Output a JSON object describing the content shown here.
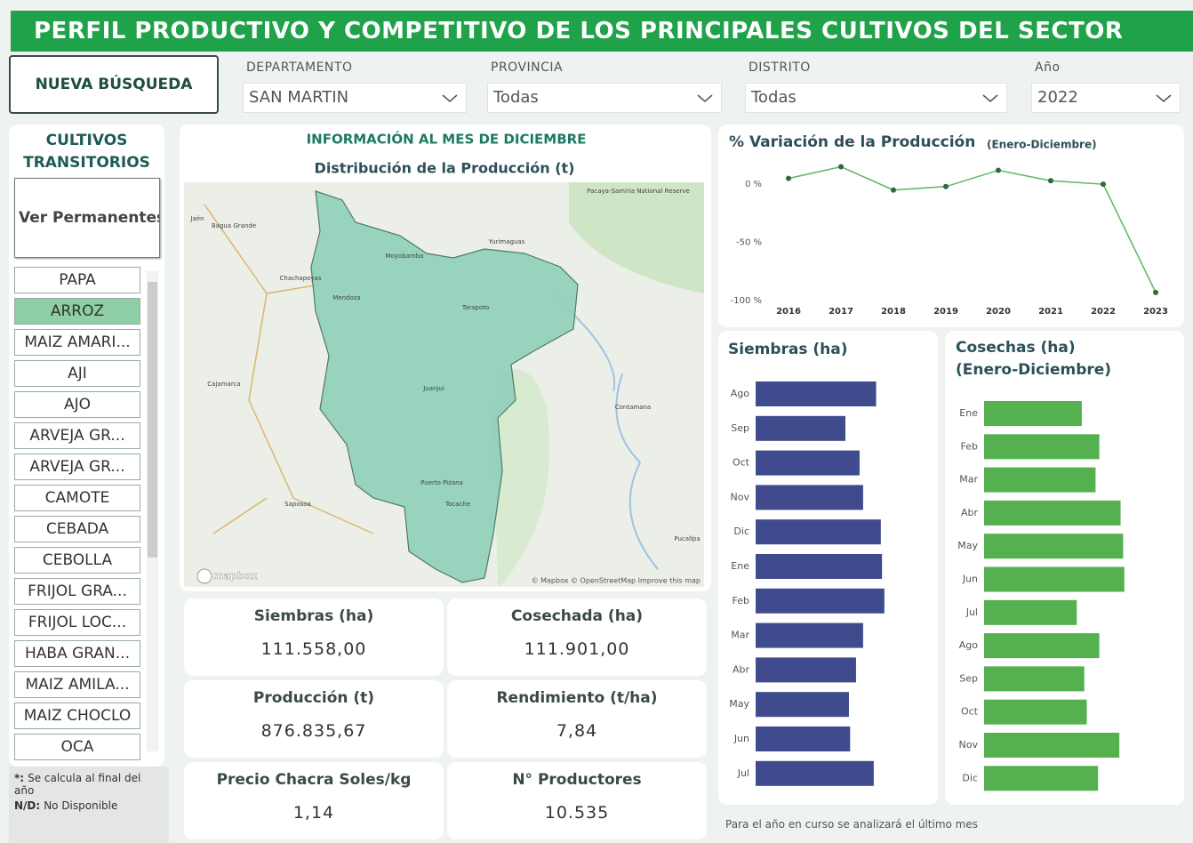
{
  "header": {
    "title": "PERFIL PRODUCTIVO Y COMPETITIVO DE LOS PRINCIPALES CULTIVOS DEL SECTOR"
  },
  "search_button": "NUEVA BÚSQUEDA",
  "filters": [
    {
      "label": "DEPARTAMENTO",
      "value": "SAN MARTIN"
    },
    {
      "label": "PROVINCIA",
      "value": "Todas"
    },
    {
      "label": "DISTRITO",
      "value": "Todas"
    },
    {
      "label": "Año",
      "value": "2022"
    }
  ],
  "sidebar": {
    "title": "CULTIVOS TRANSITORIOS",
    "toggle": "Ver Permanentes",
    "selected": 1,
    "crops": [
      "PAPA",
      "ARROZ",
      "MAIZ AMARI...",
      "AJI",
      "AJO",
      "ARVEJA GR...",
      "ARVEJA GR...",
      "CAMOTE",
      "CEBADA",
      "CEBOLLA",
      "FRIJOL GRA...",
      "FRIJOL LOC...",
      "HABA GRAN...",
      "MAIZ AMILA...",
      "MAIZ CHOCLO",
      "OCA"
    ]
  },
  "notes": [
    {
      "key": "*:",
      "text": "Se calcula al final del año"
    },
    {
      "key": "N/D:",
      "text": "No Disponible"
    }
  ],
  "map_panel": {
    "heading": "INFORMACIÓN AL MES DE DICIEMBRE",
    "title": "Distribución de la Producción (t)",
    "labels": [
      "Pacaya-Samiria National Reserve",
      "Yurimaguas",
      "Moyobamba",
      "Chachapoyas",
      "Mendoza",
      "Tarapoto",
      "Juanjui",
      "Cajamarca",
      "Contamana",
      "Puerto Pizana",
      "Tocache",
      "Saposoa",
      "Pucallpa",
      "Jaén",
      "Bagua Grande"
    ],
    "attribution": "© Mapbox © OpenStreetMap Improve this map",
    "logo": "mapbox"
  },
  "kpis": [
    {
      "label": "Siembras (ha)",
      "value": "111.558,00"
    },
    {
      "label": "Cosechada (ha)",
      "value": "111.901,00"
    },
    {
      "label": "Producción (t)",
      "value": "876.835,67"
    },
    {
      "label": "Rendimiento (t/ha)",
      "value": "7,84"
    },
    {
      "label": "Precio Chacra Soles/kg",
      "value": "1,14"
    },
    {
      "label": "N° Productores",
      "value": "10.535"
    }
  ],
  "chart_data": [
    {
      "type": "line",
      "title": "% Variación de la Producción",
      "subtitle": "(Enero-Diciembre)",
      "categories": [
        "2016",
        "2017",
        "2018",
        "2019",
        "2020",
        "2021",
        "2022",
        "2023"
      ],
      "values": [
        5,
        15,
        -5,
        -2,
        12,
        3,
        0,
        -93
      ],
      "color": "#5cb85c",
      "marker_color": "#2e6b3a",
      "ylim": [
        -100,
        20
      ],
      "yticks": [
        {
          "value": -100,
          "label": "-100 %"
        },
        {
          "value": -50,
          "label": "-50 %"
        },
        {
          "value": 0,
          "label": "0 %"
        }
      ]
    },
    {
      "type": "bar",
      "orientation": "horizontal",
      "title": "Siembras (ha)",
      "categories": [
        "Ago",
        "Sep",
        "Oct",
        "Nov",
        "Dic",
        "Ene",
        "Feb",
        "Mar",
        "Abr",
        "May",
        "Jun",
        "Jul"
      ],
      "values": [
        10200,
        7600,
        8800,
        9100,
        10600,
        10700,
        10900,
        9100,
        8500,
        7900,
        8000,
        10000
      ],
      "color": "#3f4b8c",
      "xlim": [
        0,
        14300
      ]
    },
    {
      "type": "bar",
      "orientation": "horizontal",
      "title": "Cosechas (ha)",
      "subtitle": "(Enero-Diciembre)",
      "categories": [
        "Ene",
        "Feb",
        "Mar",
        "Abr",
        "May",
        "Jun",
        "Jul",
        "Ago",
        "Sep",
        "Oct",
        "Nov",
        "Dic"
      ],
      "values": [
        7800,
        9200,
        8900,
        10900,
        11100,
        11200,
        7400,
        9200,
        8000,
        8200,
        10800,
        9100
      ],
      "color": "#55b04f",
      "xlim": [
        0,
        13700
      ]
    }
  ],
  "footnote": "Para el año en curso se analizará el último mes"
}
